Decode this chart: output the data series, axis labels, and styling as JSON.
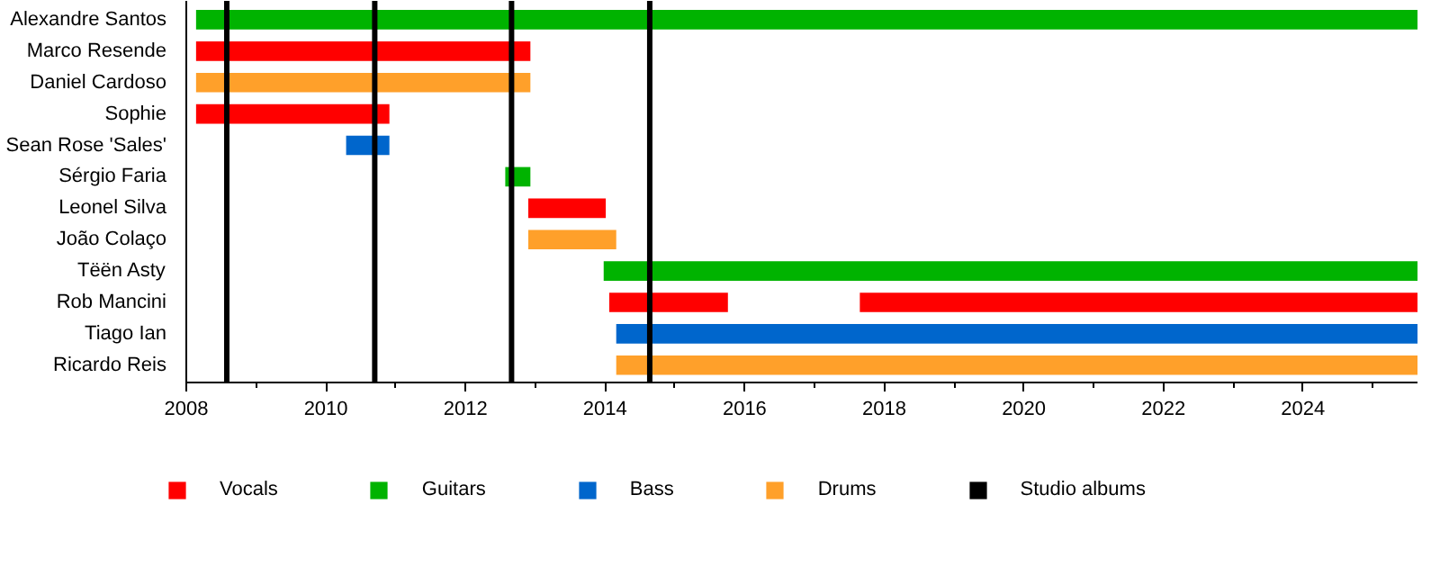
{
  "chart_data": {
    "type": "bar",
    "orientation": "horizontal",
    "categories": [
      "Alexandre Santos",
      "Marco Resende",
      "Daniel Cardoso",
      "Sophie",
      "Sean Rose 'Sales'",
      "Sérgio Faria",
      "Leonel Silva",
      "João Colaço",
      "Tëën Asty",
      "Rob Mancini",
      "Tiago Ian",
      "Ricardo Reis"
    ],
    "series": [
      {
        "name": "Vocals",
        "color": "#ff0000",
        "values": [
          null,
          4.79,
          null,
          2.77,
          null,
          null,
          1.11,
          null,
          null,
          1.7,
          null,
          null
        ],
        "base": [
          null,
          2008.14,
          null,
          2008.14,
          null,
          null,
          2012.9,
          null,
          null,
          2014.06,
          null,
          null
        ]
      },
      {
        "color": "#ff0000",
        "values": [
          null,
          null,
          null,
          null,
          null,
          null,
          null,
          null,
          null,
          7.99,
          null,
          null
        ],
        "base": [
          null,
          null,
          null,
          null,
          null,
          null,
          null,
          null,
          null,
          2017.65,
          null,
          null
        ]
      },
      {
        "name": "Guitars",
        "color": "#00b300",
        "values": [
          17.5,
          null,
          null,
          null,
          null,
          0.36,
          null,
          null,
          11.66,
          null,
          null,
          null
        ],
        "base": [
          2008.14,
          null,
          null,
          null,
          null,
          2012.57,
          null,
          null,
          2013.98,
          null,
          null,
          null
        ]
      },
      {
        "name": "Bass",
        "color": "#0066cc",
        "values": [
          null,
          null,
          null,
          null,
          0.62,
          null,
          null,
          null,
          null,
          null,
          11.48,
          null
        ],
        "base": [
          null,
          null,
          null,
          null,
          2010.29,
          null,
          null,
          null,
          null,
          null,
          2014.16,
          null
        ]
      },
      {
        "name": "Drums",
        "color": "#ffa02a",
        "values": [
          null,
          null,
          4.79,
          null,
          null,
          null,
          null,
          1.26,
          null,
          null,
          null,
          11.48
        ],
        "base": [
          null,
          null,
          2008.14,
          null,
          null,
          null,
          null,
          2012.9,
          null,
          null,
          null,
          2014.16
        ]
      }
    ],
    "ref_lines": [
      {
        "axis": "x",
        "value": 2008.58,
        "label": "Studio albums",
        "color": "#000000"
      },
      {
        "axis": "x",
        "value": 2010.7,
        "color": "#000000"
      },
      {
        "axis": "x",
        "value": 2012.66,
        "color": "#000000"
      },
      {
        "axis": "x",
        "value": 2014.64,
        "color": "#000000"
      }
    ],
    "xlim": [
      2008,
      2025.64
    ],
    "xticks": [
      2008,
      2010,
      2012,
      2014,
      2016,
      2018,
      2020,
      2022,
      2024
    ],
    "grid": false,
    "legend": "bottom"
  }
}
